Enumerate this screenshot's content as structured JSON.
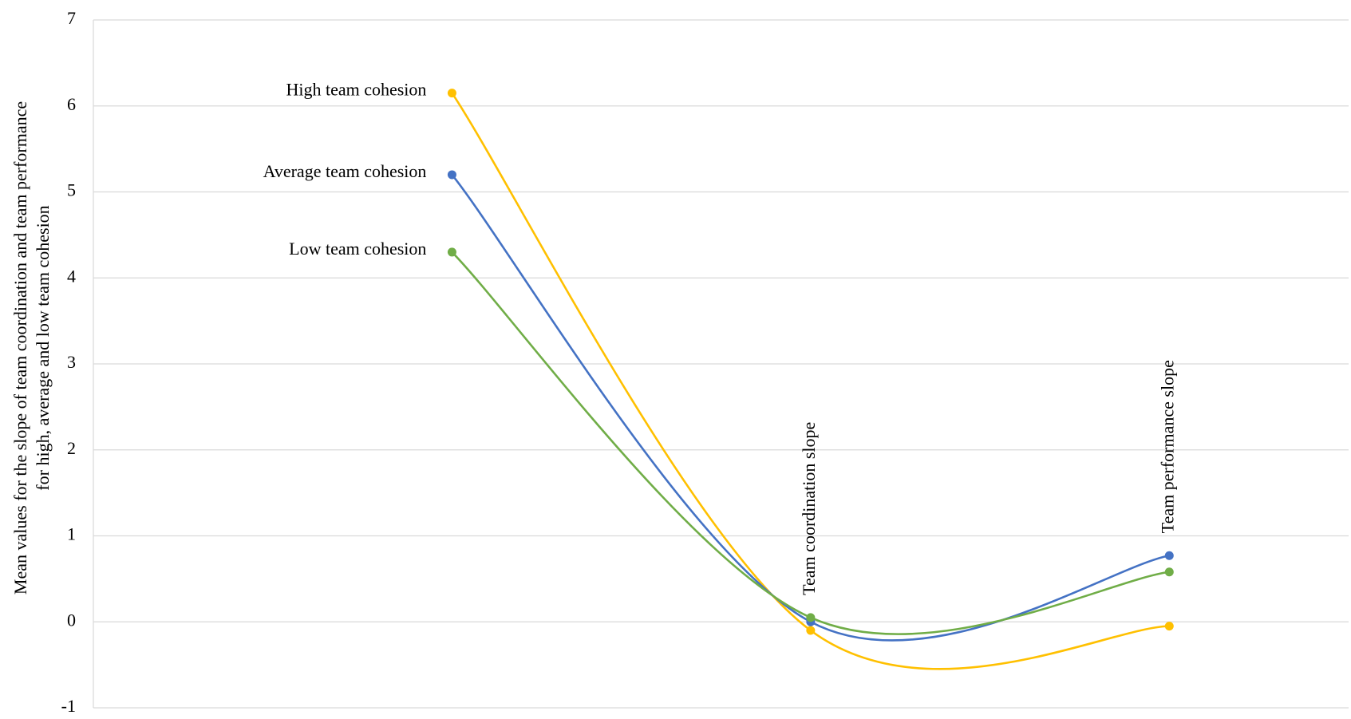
{
  "chart_data": {
    "type": "line",
    "ylabel": [
      "Mean values for the slope of team coordination and team performance",
      "for high, average and low team cohesion"
    ],
    "categories": [
      null,
      "Team coordination slope",
      "Team performance slope"
    ],
    "series": [
      {
        "name": "High team cohesion",
        "color": "#FFC000",
        "values": [
          6.15,
          -0.1,
          -0.05
        ]
      },
      {
        "name": "Average team cohesion",
        "color": "#4472C4",
        "values": [
          5.2,
          0.0,
          0.77
        ]
      },
      {
        "name": "Low team cohesion",
        "color": "#70AD47",
        "values": [
          4.3,
          0.05,
          0.58
        ]
      }
    ],
    "ylim": [
      -1,
      7
    ],
    "yticks": [
      -1,
      0,
      1,
      2,
      3,
      4,
      5,
      6,
      7
    ],
    "grid": true,
    "smooth": true
  }
}
